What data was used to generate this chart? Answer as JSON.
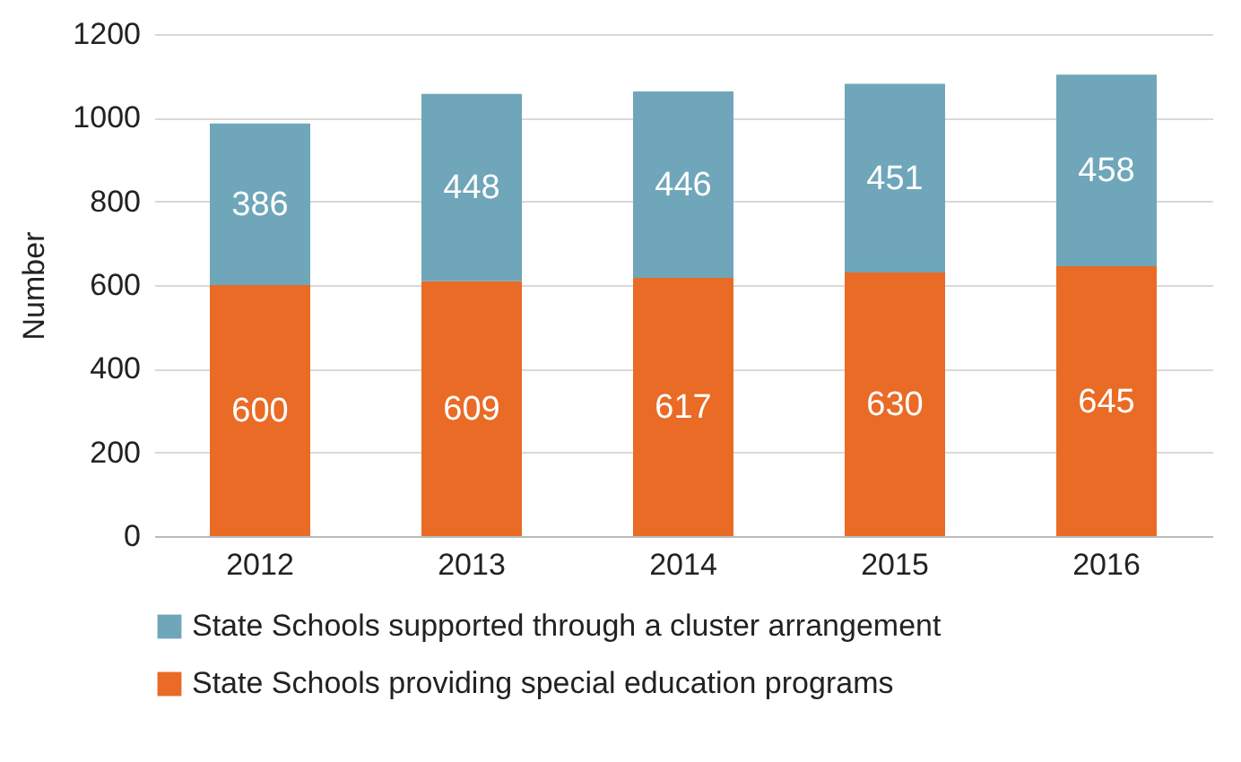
{
  "chart_data": {
    "type": "bar",
    "stacked": true,
    "ylabel": "Number",
    "categories": [
      "2012",
      "2013",
      "2014",
      "2015",
      "2016"
    ],
    "series": [
      {
        "name": "State Schools providing special education programs",
        "color": "#e96b25",
        "values": [
          600,
          609,
          617,
          630,
          645
        ]
      },
      {
        "name": "State Schools supported through a cluster arrangement",
        "color": "#6fa6b9",
        "values": [
          386,
          448,
          446,
          451,
          458
        ]
      }
    ],
    "ylim": [
      0,
      1200
    ],
    "yticks": [
      0,
      200,
      400,
      600,
      800,
      1000,
      1200
    ],
    "grid": "y",
    "data_labels": true,
    "legend": "bottom"
  }
}
